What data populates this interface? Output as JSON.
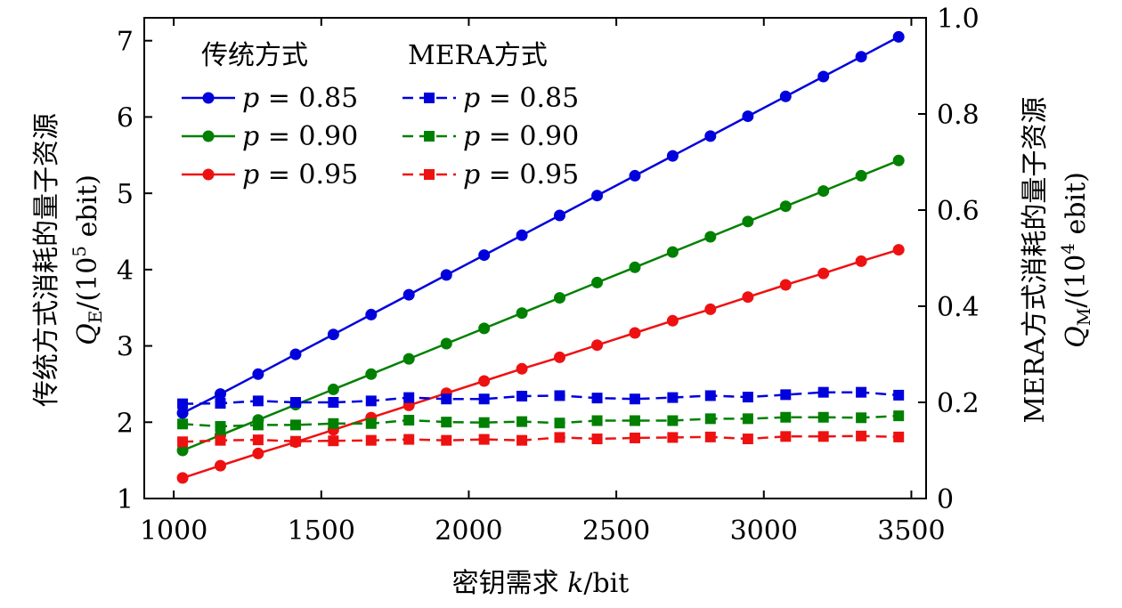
{
  "chart_data": {
    "type": "line",
    "x": [
      1030,
      1158,
      1286,
      1413,
      1541,
      1669,
      1797,
      1924,
      2052,
      2180,
      2308,
      2435,
      2563,
      2691,
      2819,
      2946,
      3074,
      3202,
      3330,
      3457
    ],
    "xlabel": "密钥需求 k/bit",
    "xlim": [
      900,
      3550
    ],
    "xticks": [
      1000,
      1500,
      2000,
      2500,
      3000,
      3500
    ],
    "ylabel_left": {
      "line1": "传统方式消耗的量子资源",
      "line2": "Q_E/(10^5 ebit)"
    },
    "ylabel_right": {
      "line1": "MERA方式消耗的量子资源",
      "line2": "Q_M/(10^4 ebit)"
    },
    "ylim_left": [
      1,
      7.3
    ],
    "ylim_right": [
      0,
      1.0
    ],
    "yticks_left": [
      "1",
      "2",
      "3",
      "4",
      "5",
      "6",
      "7"
    ],
    "yticks_right": [
      "0",
      "0.2",
      "0.4",
      "0.6",
      "0.8",
      "1.0"
    ],
    "legend": {
      "position": "top-left",
      "heading_traditional": "传统方式",
      "heading_mera": "MERA方式"
    },
    "series": [
      {
        "name": "传统方式 p = 0.85",
        "label": "p = 0.85",
        "axis": "left",
        "color": "#0000dd",
        "marker": "circle",
        "dash": false,
        "values": [
          2.12,
          2.37,
          2.63,
          2.89,
          3.15,
          3.41,
          3.67,
          3.93,
          4.19,
          4.45,
          4.71,
          4.97,
          5.23,
          5.49,
          5.75,
          6.01,
          6.27,
          6.53,
          6.79,
          7.05
        ]
      },
      {
        "name": "传统方式 p = 0.90",
        "label": "p = 0.90",
        "axis": "left",
        "color": "#008000",
        "marker": "circle",
        "dash": false,
        "values": [
          1.63,
          1.83,
          2.03,
          2.23,
          2.43,
          2.63,
          2.83,
          3.03,
          3.23,
          3.43,
          3.63,
          3.83,
          4.03,
          4.23,
          4.43,
          4.63,
          4.83,
          5.03,
          5.23,
          5.43
        ]
      },
      {
        "name": "传统方式 p = 0.95",
        "label": "p = 0.95",
        "axis": "left",
        "color": "#ee1111",
        "marker": "circle",
        "dash": false,
        "values": [
          1.27,
          1.43,
          1.59,
          1.74,
          1.9,
          2.06,
          2.22,
          2.38,
          2.54,
          2.7,
          2.85,
          3.01,
          3.17,
          3.33,
          3.48,
          3.64,
          3.8,
          3.95,
          4.11,
          4.26
        ]
      },
      {
        "name": "MERA方式 p = 0.85",
        "label": "p = 0.85",
        "axis": "right",
        "color": "#0000dd",
        "marker": "square",
        "dash": true,
        "values": [
          0.197,
          0.198,
          0.203,
          0.2,
          0.2,
          0.203,
          0.21,
          0.207,
          0.207,
          0.213,
          0.214,
          0.209,
          0.207,
          0.21,
          0.214,
          0.211,
          0.216,
          0.221,
          0.221,
          0.215
        ]
      },
      {
        "name": "MERA方式 p = 0.90",
        "label": "p = 0.90",
        "axis": "right",
        "color": "#008000",
        "marker": "square",
        "dash": true,
        "values": [
          0.155,
          0.15,
          0.153,
          0.153,
          0.156,
          0.156,
          0.163,
          0.159,
          0.158,
          0.16,
          0.157,
          0.162,
          0.162,
          0.162,
          0.166,
          0.166,
          0.169,
          0.169,
          0.168,
          0.172
        ]
      },
      {
        "name": "MERA方式 p = 0.95",
        "label": "p = 0.95",
        "axis": "right",
        "color": "#ee1111",
        "marker": "square",
        "dash": true,
        "values": [
          0.118,
          0.121,
          0.122,
          0.119,
          0.12,
          0.121,
          0.123,
          0.121,
          0.123,
          0.121,
          0.127,
          0.124,
          0.126,
          0.127,
          0.128,
          0.124,
          0.129,
          0.129,
          0.13,
          0.128
        ]
      }
    ]
  }
}
